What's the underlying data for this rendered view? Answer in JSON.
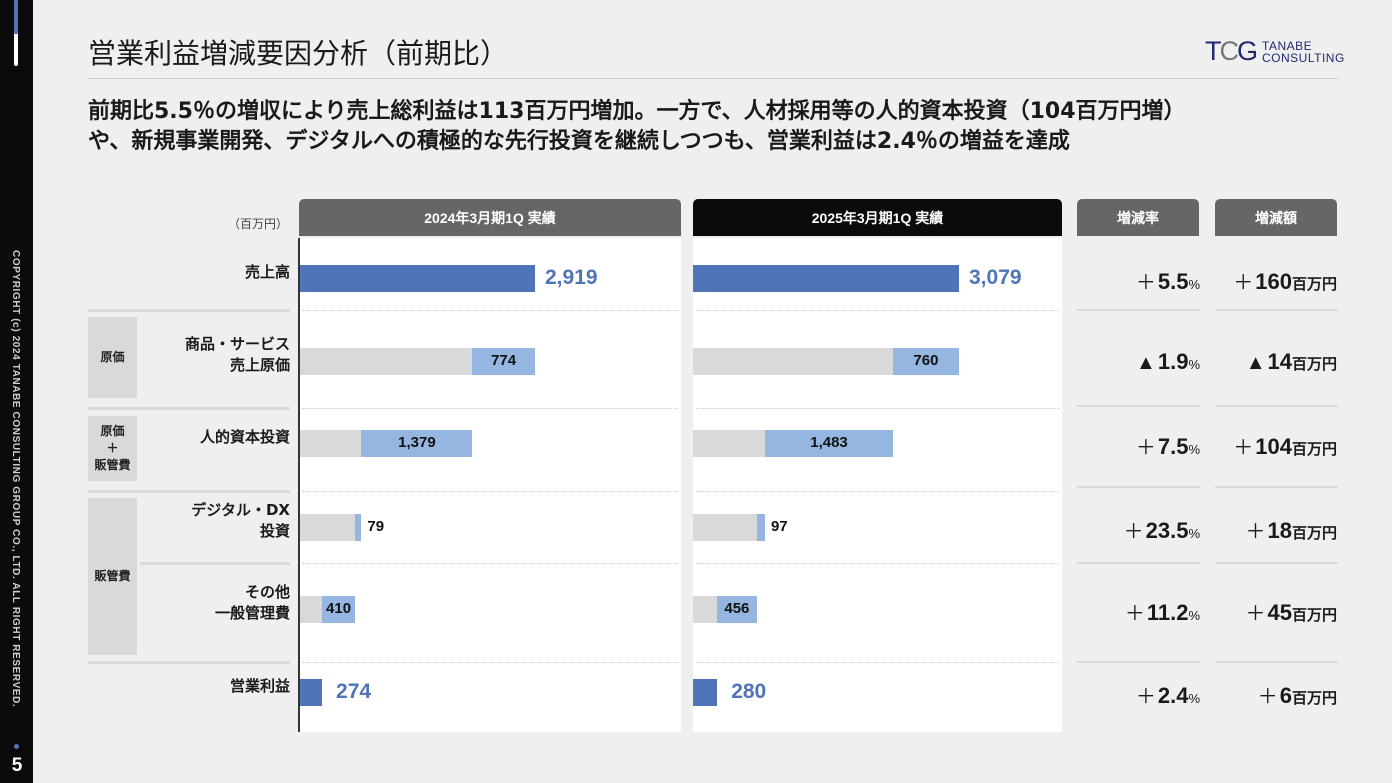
{
  "sidebar": {
    "copyright": "COPYRIGHT (c) 2024 TANABE CONSULTING GROUP CO., LTD. ALL RIGHT RESERVED.",
    "page_number": "5"
  },
  "header": {
    "title": "営業利益増減要因分析（前期比）",
    "logo_mark_1": "T",
    "logo_mark_2": "C",
    "logo_mark_3": "G",
    "logo_line1": "TANABE",
    "logo_line2": "CONSULTING"
  },
  "lead": {
    "line1": "前期比5.5％の増収により売上総利益は113百万円増加。一方で、人材採用等の人的資本投資（104百万円増）",
    "line2": "や、新規事業開発、デジタルへの積極的な先行投資を継続しつつも、営業利益は2.4％の増益を達成"
  },
  "colors": {
    "total_bar": "#4f74b7",
    "delta_bar": "#95b6e0",
    "base_bar": "#d9d9d9",
    "prev_header": "#666666",
    "curr_header": "#0b0b0b"
  },
  "chart_data": {
    "type": "waterfall",
    "unit_label": "（百万円）",
    "columns": {
      "prev": "2024年3月期1Q 実績",
      "curr": "2025年3月期1Q 実績",
      "rate": "増減率",
      "amount": "増減額"
    },
    "groups": [
      {
        "label": "原価"
      },
      {
        "label": "原価\n＋\n販管費"
      },
      {
        "label": "販管費"
      }
    ],
    "rows": [
      {
        "label": "売上高",
        "kind": "total",
        "prev": 2919,
        "curr": 3079,
        "prev_text": "2,919",
        "curr_text": "3,079",
        "rate_sign": "＋",
        "rate": "5.5",
        "rate_unit": "%",
        "amt_sign": "＋",
        "amt": "160",
        "amt_unit": "百万円"
      },
      {
        "label": "商品・サービス\n売上原価",
        "kind": "cost",
        "prev": 774,
        "curr": 760,
        "prev_text": "774",
        "curr_text": "760",
        "rate_sign": "▲",
        "rate": "1.9",
        "rate_unit": "%",
        "amt_sign": "▲",
        "amt": "14",
        "amt_unit": "百万円"
      },
      {
        "label": "人的資本投資",
        "kind": "cost",
        "prev": 1379,
        "curr": 1483,
        "prev_text": "1,379",
        "curr_text": "1,483",
        "rate_sign": "＋",
        "rate": "7.5",
        "rate_unit": "%",
        "amt_sign": "＋",
        "amt": "104",
        "amt_unit": "百万円"
      },
      {
        "label": "デジタル・DX\n投資",
        "kind": "cost",
        "prev": 79,
        "curr": 97,
        "prev_text": "79",
        "curr_text": "97",
        "rate_sign": "＋",
        "rate": "23.5",
        "rate_unit": "%",
        "amt_sign": "＋",
        "amt": "18",
        "amt_unit": "百万円"
      },
      {
        "label": "その他\n一般管理費",
        "kind": "cost",
        "prev": 410,
        "curr": 456,
        "prev_text": "410",
        "curr_text": "456",
        "rate_sign": "＋",
        "rate": "11.2",
        "rate_unit": "%",
        "amt_sign": "＋",
        "amt": "45",
        "amt_unit": "百万円"
      },
      {
        "label": "営業利益",
        "kind": "total",
        "prev": 274,
        "curr": 280,
        "prev_text": "274",
        "curr_text": "280",
        "rate_sign": "＋",
        "rate": "2.4",
        "rate_unit": "%",
        "amt_sign": "＋",
        "amt": "6",
        "amt_unit": "百万円"
      }
    ]
  }
}
